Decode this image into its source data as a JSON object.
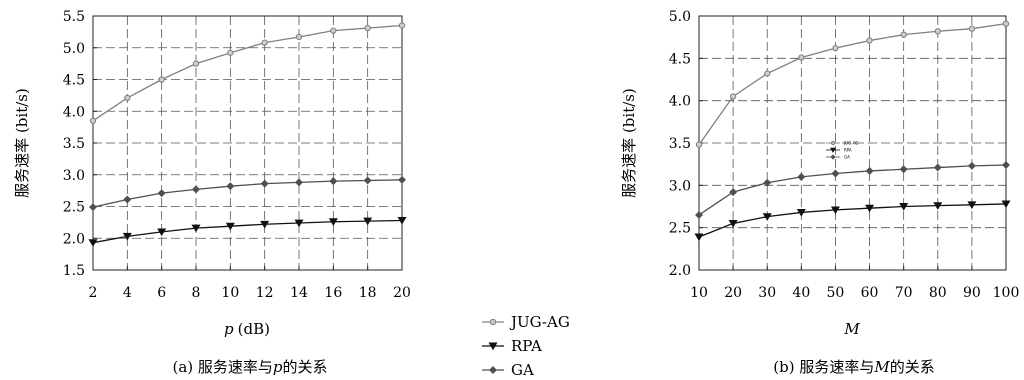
{
  "chart_data": [
    {
      "type": "line",
      "x": [
        2,
        4,
        6,
        8,
        10,
        12,
        14,
        16,
        18,
        20
      ],
      "xlabel_var": "p",
      "xlabel_unit": "(dB)",
      "ylabel": "服务速率 (bit/s)",
      "xlim": [
        2,
        20
      ],
      "ylim": [
        1.5,
        5.5
      ],
      "xticks": [
        "2",
        "4",
        "6",
        "8",
        "10",
        "12",
        "14",
        "16",
        "18",
        "20"
      ],
      "yticks": [
        "1.5",
        "2.0",
        "2.5",
        "3.0",
        "3.5",
        "4.0",
        "4.5",
        "5.0",
        "5.5"
      ],
      "grid": true,
      "caption_pre": "(a) 服务速率与",
      "caption_var": "p",
      "caption_post": "的关系",
      "series": [
        {
          "name": "JUG-AG",
          "values": [
            3.85,
            4.21,
            4.5,
            4.75,
            4.92,
            5.08,
            5.17,
            5.27,
            5.31,
            5.35
          ]
        },
        {
          "name": "RPA",
          "values": [
            1.93,
            2.03,
            2.1,
            2.16,
            2.19,
            2.22,
            2.24,
            2.26,
            2.27,
            2.28
          ]
        },
        {
          "name": "GA",
          "values": [
            2.49,
            2.61,
            2.71,
            2.77,
            2.82,
            2.86,
            2.88,
            2.9,
            2.91,
            2.92
          ]
        }
      ]
    },
    {
      "type": "line",
      "x": [
        10,
        20,
        30,
        40,
        50,
        60,
        70,
        80,
        90,
        100
      ],
      "xlabel_var": "M",
      "xlabel_unit": "",
      "ylabel": "服务速率 (bit/s)",
      "xlim": [
        10,
        100
      ],
      "ylim": [
        2.0,
        5.0
      ],
      "xticks": [
        "10",
        "20",
        "30",
        "40",
        "50",
        "60",
        "70",
        "80",
        "90",
        "100"
      ],
      "yticks": [
        "2.0",
        "2.5",
        "3.0",
        "3.5",
        "4.0",
        "4.5",
        "5.0"
      ],
      "grid": true,
      "caption_pre": "(b) 服务速率与",
      "caption_var": "M",
      "caption_post": "的关系",
      "mini_legend": [
        "JUG-AG",
        "RPA",
        "GA"
      ],
      "series": [
        {
          "name": "JUG-AG",
          "values": [
            3.48,
            4.05,
            4.32,
            4.51,
            4.62,
            4.71,
            4.78,
            4.82,
            4.85,
            4.91
          ]
        },
        {
          "name": "RPA",
          "values": [
            2.39,
            2.55,
            2.63,
            2.68,
            2.71,
            2.73,
            2.75,
            2.76,
            2.77,
            2.78
          ]
        },
        {
          "name": "GA",
          "values": [
            2.65,
            2.92,
            3.03,
            3.1,
            3.14,
            3.17,
            3.19,
            3.21,
            3.23,
            3.24
          ]
        }
      ]
    }
  ],
  "legend": {
    "items": [
      {
        "label": "JUG-AG",
        "marker": "circle"
      },
      {
        "label": "RPA",
        "marker": "triangle-down"
      },
      {
        "label": "GA",
        "marker": "diamond"
      }
    ]
  },
  "colors": {
    "JUG-AG": "#808080",
    "RPA": "#111111",
    "GA": "#505050",
    "grid": "#555555"
  }
}
